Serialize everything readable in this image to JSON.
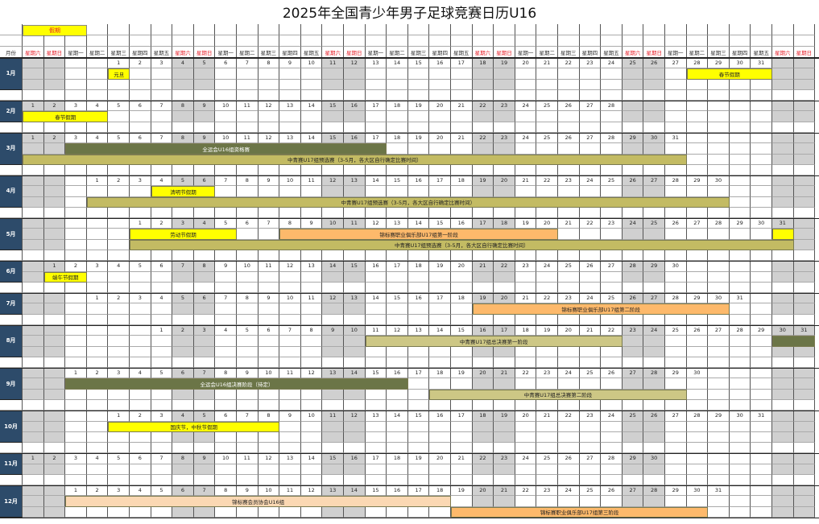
{
  "title": "2025年全国青少年男子足球竞赛日历U16",
  "legend": {
    "label": "假期",
    "color": "#ffff00"
  },
  "header": {
    "month_label": "月份"
  },
  "weekdays": [
    "星期六",
    "星期日",
    "星期一",
    "星期二",
    "星期三",
    "星期四",
    "星期五"
  ],
  "colors": {
    "weekend": "#d0d0d0",
    "month_cell": "#2d4b6a",
    "weekend_text": "#e8202a"
  },
  "months": [
    {
      "label": "1月",
      "start_weekday_col": 4,
      "days": 31,
      "rows": 3,
      "bars": [
        {
          "row": 1,
          "from": 1,
          "to": 1,
          "label": "元旦",
          "color": "#ffff00"
        },
        {
          "row": 1,
          "from": 28,
          "to": 31,
          "label": "春节假期",
          "color": "#ffff00"
        }
      ]
    },
    {
      "label": "2月",
      "start_weekday_col": 0,
      "days": 28,
      "rows": 2,
      "bars": [
        {
          "row": 1,
          "from": 1,
          "to": 4,
          "label": "春节假期",
          "color": "#ffff00"
        }
      ]
    },
    {
      "label": "3月",
      "start_weekday_col": 0,
      "days": 31,
      "rows": 3,
      "bars": [
        {
          "row": 1,
          "from": 3,
          "to": 17,
          "label": "全运会U16组资格赛",
          "color": "#6b7547",
          "text": "#ffffff"
        },
        {
          "row": 2,
          "from": 1,
          "to": 31,
          "label": "中青赛U17组预选赛（3-5月，各大区自行确定比赛时间）",
          "color": "#c3bb63"
        }
      ]
    },
    {
      "label": "4月",
      "start_weekday_col": 3,
      "days": 30,
      "rows": 3,
      "bars": [
        {
          "row": 1,
          "from": 4,
          "to": 6,
          "label": "清明节假期",
          "color": "#ffff00"
        },
        {
          "row": 2,
          "from": 1,
          "to": 30,
          "label": "中青赛U17组预选赛（3-5月，各大区自行确定比赛时间）",
          "color": "#c3bb63"
        }
      ]
    },
    {
      "label": "5月",
      "start_weekday_col": 5,
      "days": 31,
      "rows": 3,
      "bars": [
        {
          "row": 1,
          "from": 1,
          "to": 5,
          "label": "劳动节假期",
          "color": "#ffff00"
        },
        {
          "row": 1,
          "from": 8,
          "to": 20,
          "label": "锦标赛职业俱乐部U17组第一阶段",
          "color": "#fdb96b"
        },
        {
          "row": 1,
          "from": 31,
          "to": 31,
          "label": "",
          "color": "#ffff00"
        },
        {
          "row": 2,
          "from": 1,
          "to": 31,
          "label": "中青赛U17组预选赛（3-5月，各大区自行确定比赛时间）",
          "color": "#c3bb63"
        }
      ]
    },
    {
      "label": "6月",
      "start_weekday_col": 1,
      "days": 30,
      "rows": 2,
      "bars": [
        {
          "row": 1,
          "from": 1,
          "to": 2,
          "label": "端午节假期",
          "color": "#ffff00"
        }
      ]
    },
    {
      "label": "7月",
      "start_weekday_col": 3,
      "days": 31,
      "rows": 2,
      "bars": [
        {
          "row": 1,
          "from": 19,
          "to": 30,
          "label": "锦标赛职业俱乐部U17组第二阶段",
          "color": "#fdb96b"
        }
      ]
    },
    {
      "label": "8月",
      "start_weekday_col": 6,
      "days": 31,
      "rows": 3,
      "bars": [
        {
          "row": 1,
          "from": 11,
          "to": 22,
          "label": "中青赛U17组总决赛第一阶段",
          "color": "#cdc785"
        },
        {
          "row": 1,
          "from": 30,
          "to": 31,
          "label": "",
          "color": "#6b7547"
        }
      ]
    },
    {
      "label": "9月",
      "start_weekday_col": 2,
      "days": 30,
      "rows": 3,
      "bars": [
        {
          "row": 1,
          "from": 1,
          "to": 16,
          "label": "全运会U16组决赛阶段（待定）",
          "color": "#6b7547",
          "text": "#ffffff"
        },
        {
          "row": 2,
          "from": 18,
          "to": 29,
          "label": "中青赛U17组总决赛第二阶段",
          "color": "#cdc785"
        }
      ]
    },
    {
      "label": "10月",
      "start_weekday_col": 4,
      "days": 31,
      "rows": 3,
      "bars": [
        {
          "row": 1,
          "from": 1,
          "to": 8,
          "label": "国庆节，中秋节假期",
          "color": "#ffff00"
        }
      ]
    },
    {
      "label": "11月",
      "start_weekday_col": 0,
      "days": 30,
      "rows": 2,
      "bars": []
    },
    {
      "label": "12月",
      "start_weekday_col": 2,
      "days": 31,
      "rows": 3,
      "bars": [
        {
          "row": 1,
          "from": 1,
          "to": 18,
          "label": "锦标赛会员协会U16组",
          "color": "#fbd8b3"
        },
        {
          "row": 2,
          "from": 19,
          "to": 30,
          "label": "锦标赛职业俱乐部U17组第三阶段",
          "color": "#fdb96b"
        }
      ]
    }
  ]
}
